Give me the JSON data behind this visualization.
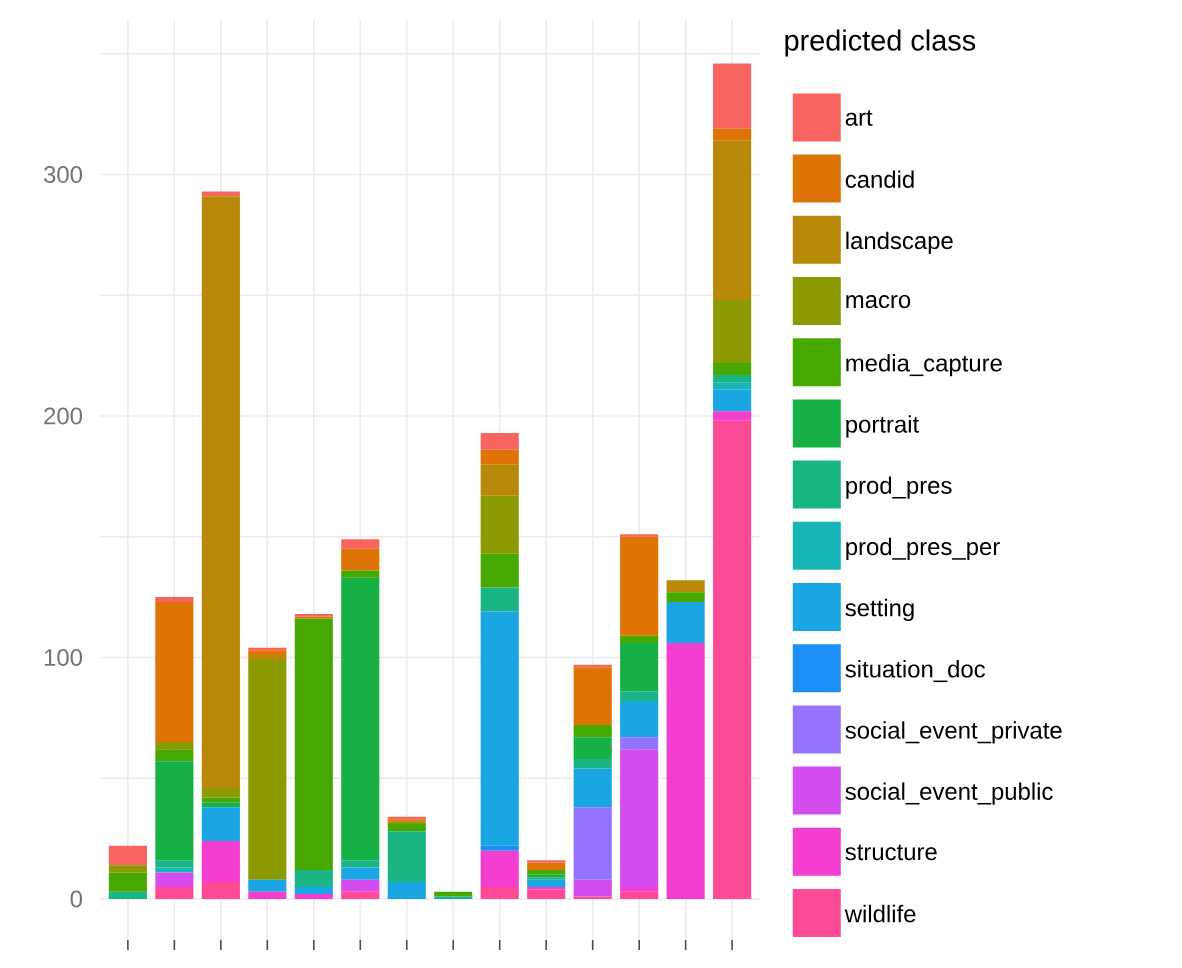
{
  "chart_data": {
    "type": "bar",
    "stacked": true,
    "legend_title": "predicted class",
    "legend": "right",
    "grid": true,
    "categories": [
      null,
      null,
      null,
      null,
      null,
      null,
      null,
      null,
      null,
      null,
      null,
      null,
      null,
      null
    ],
    "ylim": [
      -17,
      364
    ],
    "yticks": [
      0,
      {
        "value": 50,
        "label": null
      },
      100,
      {
        "value": 150,
        "label": null
      },
      200,
      {
        "value": 250,
        "label": null
      },
      300,
      {
        "value": 350,
        "label": null
      }
    ],
    "series": [
      {
        "name": "wildlife",
        "color": "#fd4a97",
        "values": [
          0,
          5,
          7,
          0,
          0,
          3,
          0,
          0,
          5,
          4,
          1,
          3,
          0,
          198
        ]
      },
      {
        "name": "structure",
        "color": "#f43ecf",
        "values": [
          0,
          0,
          17,
          3,
          2,
          0,
          0,
          0,
          15,
          1,
          0,
          2,
          106,
          4
        ]
      },
      {
        "name": "social_event_public",
        "color": "#d54cee",
        "values": [
          0,
          6,
          0,
          0,
          0,
          5,
          0,
          0,
          0,
          0,
          7,
          57,
          0,
          0
        ]
      },
      {
        "name": "social_event_private",
        "color": "#9173ff",
        "values": [
          0,
          0,
          0,
          0,
          0,
          0,
          0,
          0,
          0,
          0,
          30,
          5,
          0,
          0
        ]
      },
      {
        "name": "situation_doc",
        "color": "#1a8ff5",
        "values": [
          0,
          0,
          0,
          0,
          0,
          0,
          0,
          0,
          2,
          0,
          0,
          0,
          0,
          0
        ]
      },
      {
        "name": "setting",
        "color": "#19a6e2",
        "values": [
          0,
          0,
          14,
          5,
          3,
          5,
          7,
          0,
          97,
          3,
          16,
          15,
          17,
          9
        ]
      },
      {
        "name": "prod_pres_per",
        "color": "#17b5b5",
        "values": [
          0,
          2,
          0,
          0,
          0,
          0,
          0,
          0,
          0,
          0,
          0,
          0,
          0,
          3
        ]
      },
      {
        "name": "prod_pres",
        "color": "#1ab585",
        "values": [
          3,
          3,
          0,
          0,
          7,
          3,
          21,
          1,
          10,
          1,
          4,
          4,
          0,
          3
        ]
      },
      {
        "name": "portrait",
        "color": "#17b047",
        "values": [
          0,
          41,
          2,
          0,
          0,
          117,
          0,
          0,
          0,
          1,
          9,
          20,
          0,
          0
        ]
      },
      {
        "name": "media_capture",
        "color": "#47a800",
        "values": [
          8,
          5,
          2,
          0,
          104,
          3,
          3,
          2,
          14,
          2,
          5,
          3,
          4,
          5
        ]
      },
      {
        "name": "macro",
        "color": "#8a9a00",
        "values": [
          3,
          3,
          4,
          91,
          0,
          0,
          1,
          0,
          24,
          0,
          0,
          0,
          0,
          26
        ]
      },
      {
        "name": "landscape",
        "color": "#b88909",
        "values": [
          0,
          0,
          245,
          2,
          0,
          0,
          0,
          0,
          13,
          0,
          0,
          0,
          5,
          66
        ]
      },
      {
        "name": "candid",
        "color": "#de7406",
        "values": [
          0,
          58,
          0,
          2,
          1,
          9,
          1,
          0,
          6,
          3,
          24,
          41,
          0,
          5
        ]
      },
      {
        "name": "art",
        "color": "#f8645f",
        "values": [
          8,
          2,
          2,
          1,
          1,
          4,
          1,
          0,
          7,
          1,
          1,
          1,
          0,
          27
        ]
      }
    ]
  }
}
